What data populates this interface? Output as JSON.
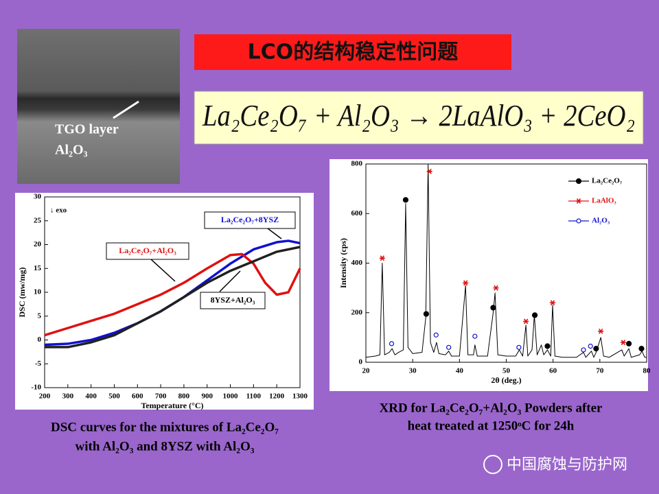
{
  "slide_title": "LCO的结构稳定性问题",
  "equation": "La₂Ce₂O₇ + Al₂O₃ → 2LaAlO₃ + 2CeO₂",
  "image_labels": [
    "TGO layer",
    "Al₂O₃"
  ],
  "chart_data": [
    {
      "type": "line",
      "xlabel": "Temperature (°C)",
      "ylabel": "DSC (mw/mg)",
      "annotation": "↓ exo",
      "xlim": [
        200,
        1300
      ],
      "xticks": [
        200,
        300,
        400,
        500,
        600,
        700,
        800,
        900,
        1000,
        1100,
        1200,
        1300
      ],
      "ylim": [
        -10,
        30
      ],
      "yticks": [
        -10,
        -5,
        0,
        5,
        10,
        15,
        20,
        25,
        30
      ],
      "series": [
        {
          "name": "La₂Ce₂O₇+8YSZ",
          "color": "#1010d0",
          "x": [
            200,
            300,
            400,
            500,
            600,
            700,
            800,
            900,
            1000,
            1100,
            1200,
            1250,
            1300
          ],
          "values": [
            -1,
            -0.8,
            0,
            1.5,
            3.5,
            6,
            9,
            12.5,
            16,
            19,
            20.5,
            20.8,
            20.3
          ]
        },
        {
          "name": "La₂Ce₂O₇+Al₂O₃",
          "color": "#e01010",
          "x": [
            200,
            300,
            400,
            500,
            600,
            700,
            800,
            900,
            1000,
            1050,
            1100,
            1150,
            1200,
            1250,
            1300
          ],
          "values": [
            1,
            2.5,
            4,
            5.5,
            7.5,
            9.5,
            12,
            15,
            17.8,
            18,
            16,
            12,
            9.5,
            10,
            15
          ]
        },
        {
          "name": "8YSZ+Al₂O₃",
          "color": "#202020",
          "x": [
            200,
            300,
            400,
            500,
            600,
            700,
            800,
            900,
            1000,
            1100,
            1200,
            1300
          ],
          "values": [
            -1.5,
            -1.5,
            -0.5,
            1,
            3.5,
            6,
            9,
            12,
            14.5,
            16.5,
            18.5,
            19.5
          ]
        }
      ]
    },
    {
      "type": "xrd",
      "xlabel": "2θ (deg.)",
      "ylabel": "Intensity (cps)",
      "xlim": [
        20,
        80
      ],
      "xticks": [
        20,
        30,
        40,
        50,
        60,
        70,
        80
      ],
      "ylim": [
        0,
        800
      ],
      "yticks": [
        0,
        200,
        400,
        600,
        800
      ],
      "pattern": {
        "color": "#000000",
        "x": [
          20,
          22,
          23,
          23.5,
          24,
          25,
          25.6,
          26.2,
          27,
          28,
          28.5,
          29,
          30,
          32,
          32.8,
          33.3,
          33.8,
          34.5,
          35.1,
          35.6,
          37,
          37.7,
          38.3,
          40,
          41.3,
          41.8,
          43,
          43.3,
          43.8,
          46,
          47.2,
          47.6,
          48.2,
          50,
          52,
          52.8,
          53.5,
          54.2,
          54.6,
          55.5,
          56,
          56.6,
          57.5,
          58,
          58.8,
          59.5,
          59.9,
          60.4,
          62,
          65,
          66.5,
          67,
          68.2,
          68.7,
          69.2,
          70.2,
          70.8,
          72,
          74.7,
          75.2,
          76.2,
          76.7,
          78.5,
          79,
          79.6,
          80
        ],
        "values": [
          20,
          25,
          30,
          400,
          30,
          40,
          55,
          30,
          40,
          50,
          640,
          60,
          35,
          40,
          180,
          800,
          80,
          40,
          80,
          35,
          30,
          45,
          25,
          25,
          310,
          30,
          30,
          70,
          25,
          25,
          200,
          280,
          30,
          25,
          25,
          50,
          25,
          150,
          25,
          50,
          190,
          30,
          70,
          30,
          50,
          25,
          230,
          25,
          20,
          20,
          40,
          20,
          45,
          20,
          40,
          100,
          25,
          20,
          50,
          25,
          55,
          20,
          30,
          45,
          20,
          20
        ]
      },
      "series": [
        {
          "name": "La₂Ce₂O₇",
          "color": "#000000",
          "marker": "filled-circle",
          "x": [
            28.5,
            32.9,
            47.2,
            56.1,
            58.8,
            69.2,
            76.2,
            78.9
          ],
          "values": [
            655,
            195,
            220,
            190,
            65,
            55,
            75,
            55
          ]
        },
        {
          "name": "LaAlO₃",
          "color": "#e01010",
          "marker": "star",
          "x": [
            23.5,
            33.6,
            41.3,
            47.8,
            54.2,
            59.9,
            70.2,
            75
          ],
          "values": [
            420,
            770,
            320,
            300,
            165,
            240,
            125,
            80
          ]
        },
        {
          "name": "Al₂O₃",
          "color": "#1010d0",
          "marker": "open-circle",
          "x": [
            25.5,
            35,
            37.7,
            43.3,
            52.7,
            66.5,
            68
          ],
          "values": [
            75,
            110,
            60,
            105,
            60,
            50,
            65
          ]
        }
      ]
    }
  ],
  "captions": [
    [
      "DSC curves for the mixtures of La₂Ce₂O₇",
      "with Al₂O₃ and 8YSZ with  Al₂O₃"
    ],
    [
      "XRD for La₂Ce₂O₇+Al₂O₃ Powders after",
      "heat treated at 1250ᵒC for 24h"
    ]
  ],
  "watermark": "中国腐蚀与防护网"
}
